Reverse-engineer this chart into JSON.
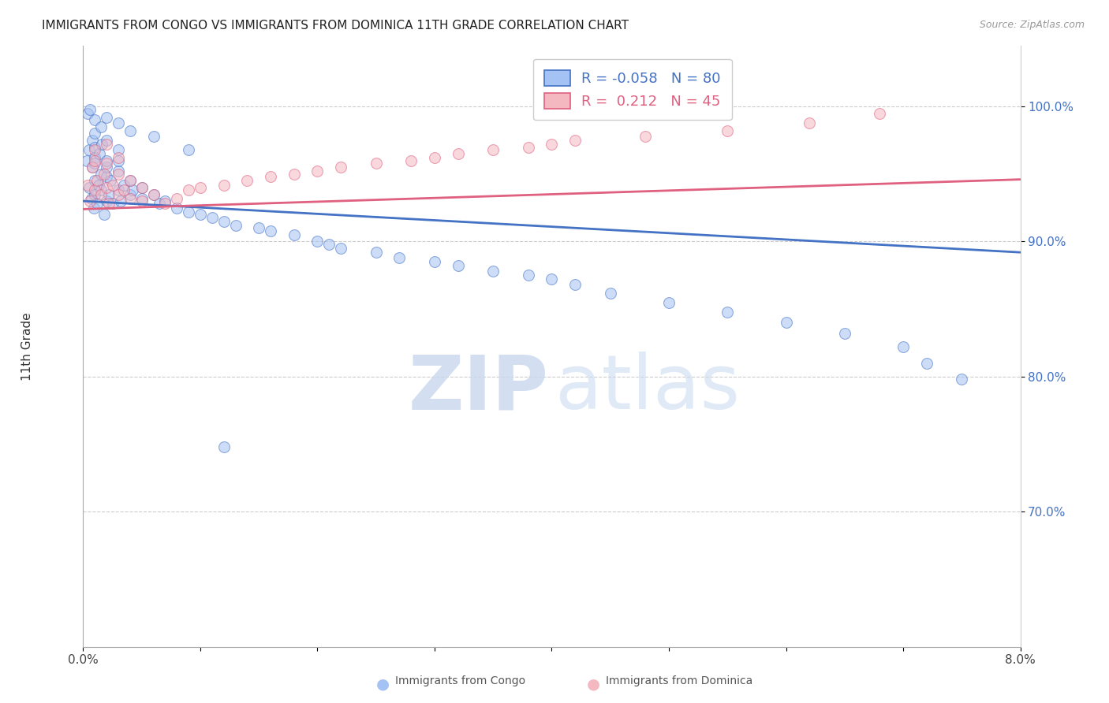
{
  "title": "IMMIGRANTS FROM CONGO VS IMMIGRANTS FROM DOMINICA 11TH GRADE CORRELATION CHART",
  "source": "Source: ZipAtlas.com",
  "ylabel": "11th Grade",
  "color_congo": "#a4c2f4",
  "color_dominica": "#f4b8c1",
  "color_congo_line": "#4472c4",
  "color_dominica_line": "#e06080",
  "xlim": [
    0.0,
    0.08
  ],
  "ylim": [
    0.6,
    1.045
  ],
  "yticks": [
    0.7,
    0.8,
    0.9,
    1.0
  ],
  "ytick_labels": [
    "70.0%",
    "80.0%",
    "90.0%",
    "100.0%"
  ],
  "congo_R": -0.058,
  "congo_N": 80,
  "dominica_R": 0.212,
  "dominica_N": 45,
  "legend_label_congo": "Immigrants from Congo",
  "legend_label_dominica": "Immigrants from Dominica",
  "congo_x": [
    0.0003,
    0.0005,
    0.0005,
    0.0007,
    0.0008,
    0.0008,
    0.0009,
    0.001,
    0.001,
    0.001,
    0.001,
    0.001,
    0.001,
    0.0012,
    0.0013,
    0.0014,
    0.0015,
    0.0015,
    0.0016,
    0.0018,
    0.002,
    0.002,
    0.002,
    0.002,
    0.002,
    0.0022,
    0.0023,
    0.0025,
    0.003,
    0.003,
    0.003,
    0.003,
    0.0032,
    0.0035,
    0.004,
    0.004,
    0.0042,
    0.005,
    0.005,
    0.006,
    0.0065,
    0.007,
    0.008,
    0.009,
    0.01,
    0.011,
    0.012,
    0.013,
    0.015,
    0.016,
    0.018,
    0.02,
    0.021,
    0.022,
    0.025,
    0.027,
    0.03,
    0.032,
    0.035,
    0.038,
    0.04,
    0.042,
    0.045,
    0.05,
    0.055,
    0.06,
    0.065,
    0.07,
    0.072,
    0.075,
    0.0004,
    0.0006,
    0.001,
    0.0015,
    0.002,
    0.003,
    0.004,
    0.006,
    0.009,
    0.012
  ],
  "congo_y": [
    0.96,
    0.94,
    0.968,
    0.932,
    0.955,
    0.975,
    0.925,
    0.945,
    0.962,
    0.958,
    0.935,
    0.97,
    0.98,
    0.928,
    0.942,
    0.965,
    0.938,
    0.95,
    0.972,
    0.92,
    0.93,
    0.948,
    0.955,
    0.96,
    0.975,
    0.935,
    0.945,
    0.928,
    0.938,
    0.952,
    0.96,
    0.968,
    0.93,
    0.942,
    0.935,
    0.945,
    0.938,
    0.932,
    0.94,
    0.935,
    0.928,
    0.93,
    0.925,
    0.922,
    0.92,
    0.918,
    0.915,
    0.912,
    0.91,
    0.908,
    0.905,
    0.9,
    0.898,
    0.895,
    0.892,
    0.888,
    0.885,
    0.882,
    0.878,
    0.875,
    0.872,
    0.868,
    0.862,
    0.855,
    0.848,
    0.84,
    0.832,
    0.822,
    0.81,
    0.798,
    0.995,
    0.998,
    0.99,
    0.985,
    0.992,
    0.988,
    0.982,
    0.978,
    0.968,
    0.748
  ],
  "dominica_x": [
    0.0004,
    0.0006,
    0.0008,
    0.001,
    0.001,
    0.001,
    0.0012,
    0.0015,
    0.0018,
    0.002,
    0.002,
    0.002,
    0.0022,
    0.0025,
    0.003,
    0.003,
    0.003,
    0.0035,
    0.004,
    0.004,
    0.005,
    0.005,
    0.006,
    0.007,
    0.008,
    0.009,
    0.01,
    0.012,
    0.014,
    0.016,
    0.018,
    0.02,
    0.022,
    0.025,
    0.028,
    0.03,
    0.032,
    0.035,
    0.038,
    0.04,
    0.042,
    0.048,
    0.055,
    0.062,
    0.068
  ],
  "dominica_y": [
    0.942,
    0.93,
    0.955,
    0.938,
    0.96,
    0.968,
    0.945,
    0.935,
    0.95,
    0.94,
    0.958,
    0.972,
    0.928,
    0.942,
    0.935,
    0.95,
    0.962,
    0.938,
    0.932,
    0.945,
    0.93,
    0.94,
    0.935,
    0.928,
    0.932,
    0.938,
    0.94,
    0.942,
    0.945,
    0.948,
    0.95,
    0.952,
    0.955,
    0.958,
    0.96,
    0.962,
    0.965,
    0.968,
    0.97,
    0.972,
    0.975,
    0.978,
    0.982,
    0.988,
    0.995
  ],
  "congo_line_y0": 0.93,
  "congo_line_y1": 0.892,
  "dominica_line_y0": 0.924,
  "dominica_line_y1": 0.946
}
